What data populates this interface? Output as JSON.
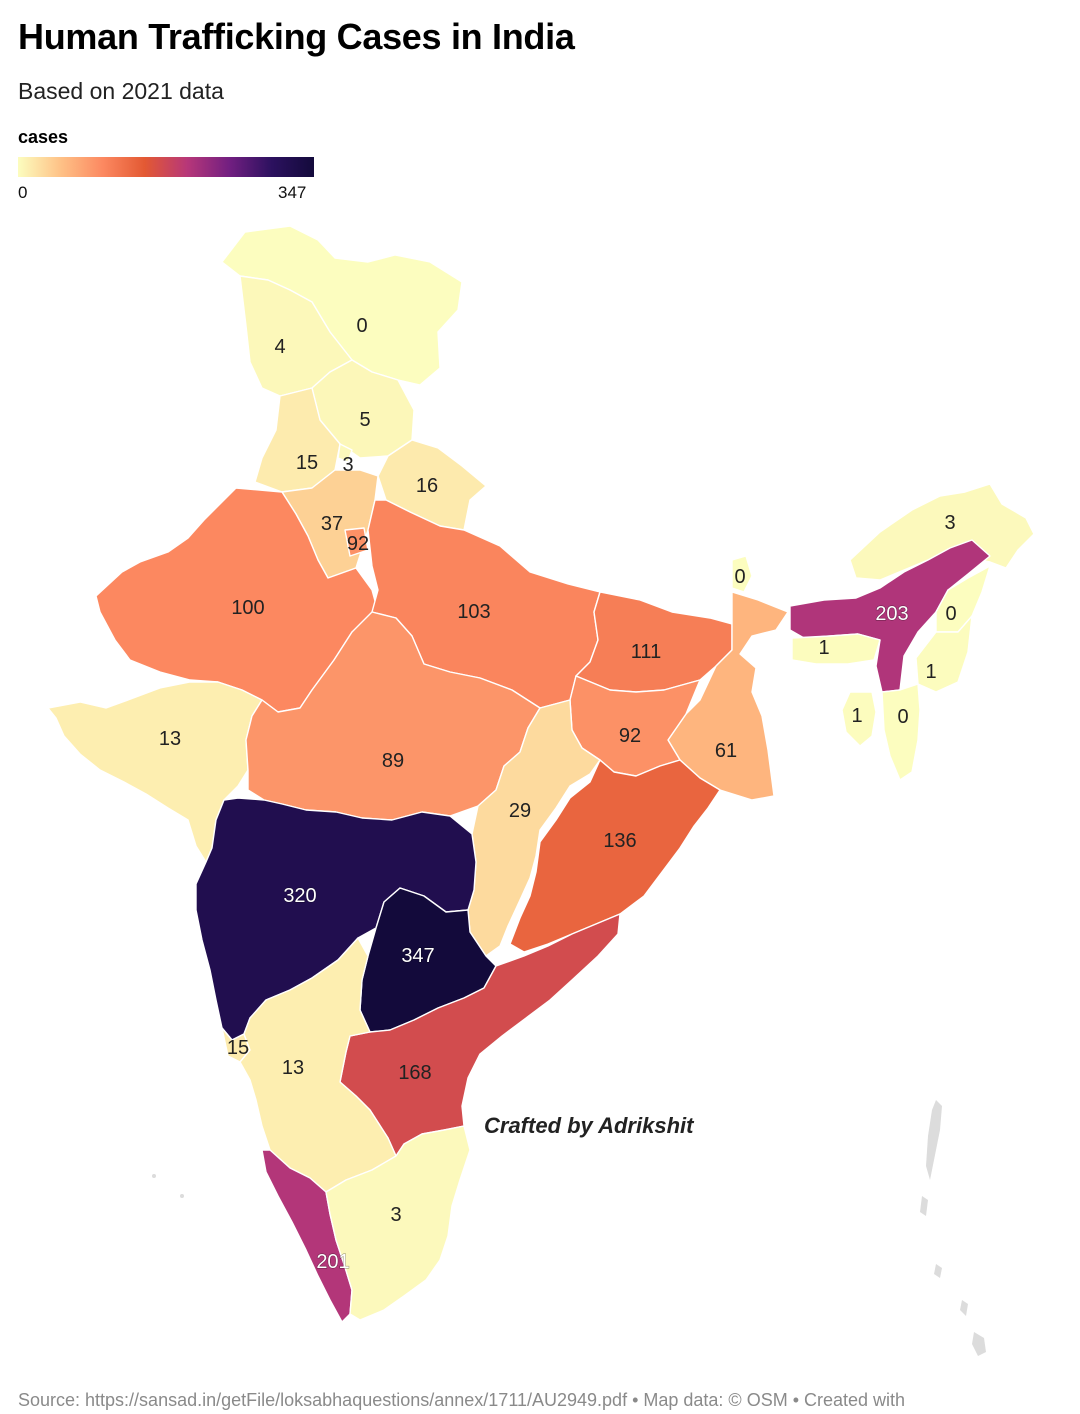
{
  "header": {
    "title": "Human Trafficking Cases in India",
    "subtitle": "Based on 2021 data"
  },
  "legend": {
    "title": "cases",
    "min_label": "0",
    "max_label": "347",
    "min": 0,
    "max": 347,
    "color_scale": [
      "#fcfdbf",
      "#fec287",
      "#fc8961",
      "#e35933",
      "#b73779",
      "#721f81",
      "#2c115f",
      "#130a3b"
    ]
  },
  "map": {
    "regions": [
      {
        "id": "ladakh",
        "value": 0
      },
      {
        "id": "jammu-kashmir",
        "value": 4
      },
      {
        "id": "himachal",
        "value": 5
      },
      {
        "id": "punjab",
        "value": 15
      },
      {
        "id": "chandigarh",
        "value": 3
      },
      {
        "id": "uttarakhand",
        "value": 16
      },
      {
        "id": "haryana",
        "value": 37
      },
      {
        "id": "delhi",
        "value": 92
      },
      {
        "id": "rajasthan",
        "value": 100
      },
      {
        "id": "uttar-pradesh",
        "value": 103
      },
      {
        "id": "bihar",
        "value": 111
      },
      {
        "id": "sikkim",
        "value": 0
      },
      {
        "id": "arunachal",
        "value": 3
      },
      {
        "id": "assam",
        "value": 203
      },
      {
        "id": "nagaland",
        "value": 0
      },
      {
        "id": "meghalaya",
        "value": 1
      },
      {
        "id": "manipur",
        "value": 1
      },
      {
        "id": "mizoram",
        "value": 0
      },
      {
        "id": "tripura",
        "value": 1
      },
      {
        "id": "gujarat",
        "value": 13
      },
      {
        "id": "madhya-pradesh",
        "value": 89
      },
      {
        "id": "jharkhand",
        "value": 92
      },
      {
        "id": "west-bengal",
        "value": 61
      },
      {
        "id": "chhattisgarh",
        "value": 29
      },
      {
        "id": "odisha",
        "value": 136
      },
      {
        "id": "maharashtra",
        "value": 320
      },
      {
        "id": "telangana",
        "value": 347
      },
      {
        "id": "andhra-pradesh",
        "value": 168
      },
      {
        "id": "goa",
        "value": 15
      },
      {
        "id": "karnataka",
        "value": 13
      },
      {
        "id": "kerala",
        "value": 201
      },
      {
        "id": "tamil-nadu",
        "value": 3
      }
    ],
    "labels": [
      {
        "region": "ladakh",
        "text": "0"
      },
      {
        "region": "jammu-kashmir",
        "text": "4"
      },
      {
        "region": "himachal",
        "text": "5"
      },
      {
        "region": "punjab",
        "text": "15"
      },
      {
        "region": "chandigarh",
        "text": "3"
      },
      {
        "region": "uttarakhand",
        "text": "16"
      },
      {
        "region": "haryana",
        "text": "37"
      },
      {
        "region": "delhi",
        "text": "92"
      },
      {
        "region": "rajasthan",
        "text": "100"
      },
      {
        "region": "uttar-pradesh",
        "text": "103"
      },
      {
        "region": "bihar",
        "text": "111"
      },
      {
        "region": "sikkim",
        "text": "0"
      },
      {
        "region": "arunachal",
        "text": "3"
      },
      {
        "region": "assam",
        "text": "203"
      },
      {
        "region": "nagaland",
        "text": "0"
      },
      {
        "region": "meghalaya",
        "text": "1"
      },
      {
        "region": "manipur",
        "text": "1"
      },
      {
        "region": "tripura",
        "text": "1"
      },
      {
        "region": "mizoram",
        "text": "0"
      },
      {
        "region": "gujarat",
        "text": "13"
      },
      {
        "region": "madhya-pradesh",
        "text": "89"
      },
      {
        "region": "jharkhand",
        "text": "92"
      },
      {
        "region": "west-bengal",
        "text": "61"
      },
      {
        "region": "chhattisgarh",
        "text": "29"
      },
      {
        "region": "odisha",
        "text": "136"
      },
      {
        "region": "maharashtra",
        "text": "320"
      },
      {
        "region": "telangana",
        "text": "347"
      },
      {
        "region": "andhra-pradesh",
        "text": "168"
      },
      {
        "region": "goa",
        "text": "15"
      },
      {
        "region": "karnataka",
        "text": "13"
      },
      {
        "region": "kerala",
        "text": "201"
      },
      {
        "region": "tamil-nadu",
        "text": "3"
      }
    ]
  },
  "credit": "Crafted by Adrikshit",
  "footer": {
    "source": "Source: https://sansad.in/getFile/loksabhaquestions/annex/1711/AU2949.pdf • Map data: © OSM  • Created with"
  }
}
